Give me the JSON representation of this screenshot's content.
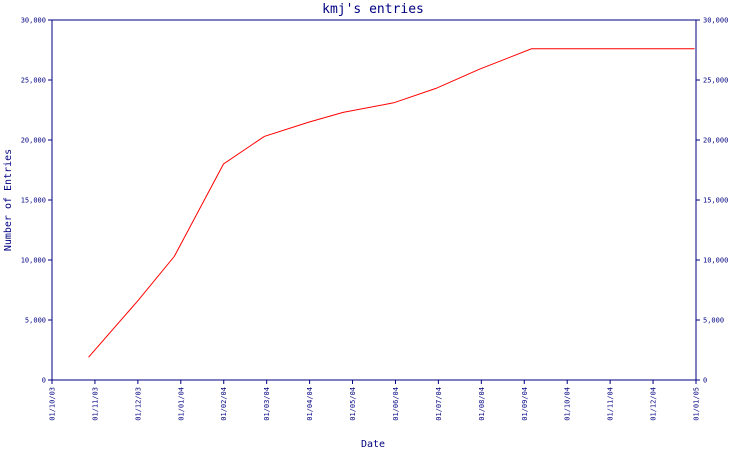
{
  "chart_data": {
    "type": "line",
    "title": "kmj's entries",
    "xlabel": "Date",
    "ylabel": "Number of Entries",
    "x_ticks": [
      "01/10/03",
      "01/11/03",
      "01/12/03",
      "01/01/04",
      "01/02/04",
      "01/03/04",
      "01/04/04",
      "01/05/04",
      "01/06/04",
      "01/07/04",
      "01/08/04",
      "01/09/04",
      "01/10/04",
      "01/11/04",
      "01/12/04",
      "01/01/05"
    ],
    "y_ticks": [
      "0",
      "5,000",
      "10,000",
      "15,000",
      "20,000",
      "25,000",
      "30,000"
    ],
    "y_ticks_right": [
      "0",
      "5,000",
      "10,000",
      "15,000",
      "20,000",
      "25,000",
      "30,000"
    ],
    "ylim": [
      0,
      30000
    ],
    "xlim": [
      "2003-10-01",
      "2005-01-01"
    ],
    "grid": false,
    "series": [
      {
        "color": "#ff0000",
        "x": [
          "2003-10-27",
          "2003-12-01",
          "2003-12-27",
          "2004-01-31",
          "2004-02-29",
          "2004-04-01",
          "2004-04-25",
          "2004-05-31",
          "2004-06-30",
          "2004-07-31",
          "2004-09-06",
          "2004-12-31"
        ],
        "values": [
          1900,
          6600,
          10300,
          18000,
          20300,
          21500,
          22300,
          23100,
          24300,
          25900,
          27600,
          27600
        ]
      }
    ]
  }
}
